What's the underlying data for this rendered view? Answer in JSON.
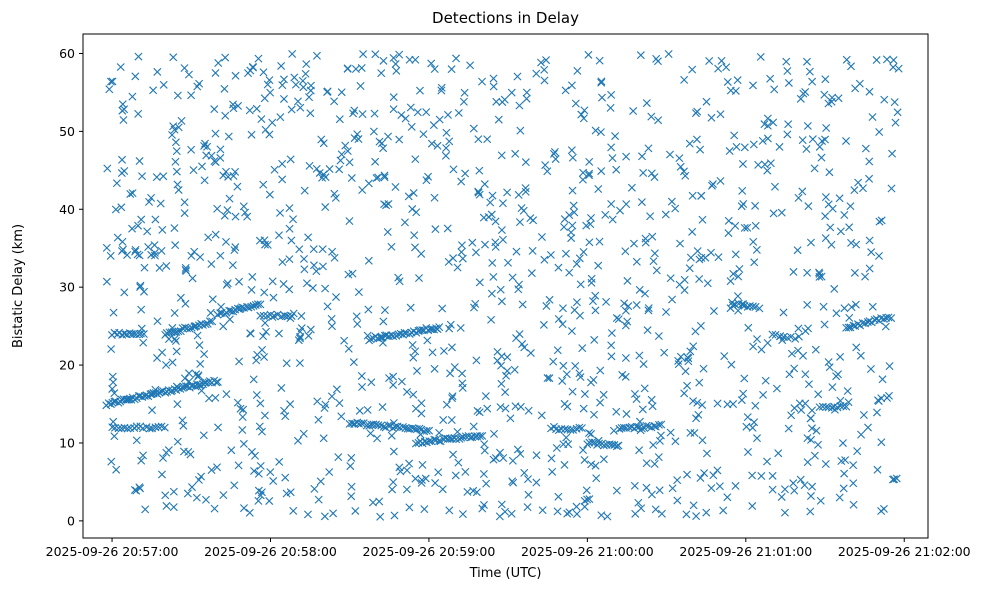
{
  "chart_data": {
    "type": "scatter",
    "title": "Detections in Delay",
    "xlabel": "Time (UTC)",
    "ylabel": "Bistatic Delay (km)",
    "marker": "x",
    "color": "#1f77b4",
    "xlim": [
      "2025-09-26 20:56:49",
      "2025-09-26 21:02:09"
    ],
    "ylim": [
      -2.2,
      62.5
    ],
    "x_ticks": [
      "2025-09-26 20:57:00",
      "2025-09-26 20:58:00",
      "2025-09-26 20:59:00",
      "2025-09-26 21:00:00",
      "2025-09-26 21:01:00",
      "2025-09-26 21:02:00"
    ],
    "y_ticks": [
      0,
      10,
      20,
      30,
      40,
      50,
      60
    ],
    "grid": false,
    "tracks": [
      {
        "t": [
          "2025-09-26 20:56:58",
          "2025-09-26 20:57:40"
        ],
        "delay": [
          15.0,
          18.0
        ],
        "count": 60
      },
      {
        "t": [
          "2025-09-26 20:57:00",
          "2025-09-26 20:57:12"
        ],
        "delay": [
          24.0,
          24.0
        ],
        "count": 14
      },
      {
        "t": [
          "2025-09-26 20:57:20",
          "2025-09-26 20:57:38"
        ],
        "delay": [
          24.0,
          25.6
        ],
        "count": 22
      },
      {
        "t": [
          "2025-09-26 20:57:40",
          "2025-09-26 20:57:56"
        ],
        "delay": [
          26.5,
          27.8
        ],
        "count": 20
      },
      {
        "t": [
          "2025-09-26 20:57:56",
          "2025-09-26 20:58:08"
        ],
        "delay": [
          26.5,
          26.3
        ],
        "count": 10
      },
      {
        "t": [
          "2025-09-26 20:57:00",
          "2025-09-26 20:57:20"
        ],
        "delay": [
          12.0,
          12.0
        ],
        "count": 18
      },
      {
        "t": [
          "2025-09-26 20:58:30",
          "2025-09-26 20:59:00"
        ],
        "delay": [
          12.6,
          11.6
        ],
        "count": 34
      },
      {
        "t": [
          "2025-09-26 20:58:38",
          "2025-09-26 20:58:56"
        ],
        "delay": [
          23.5,
          24.3
        ],
        "count": 22
      },
      {
        "t": [
          "2025-09-26 20:58:56",
          "2025-09-26 20:59:04"
        ],
        "delay": [
          24.5,
          24.8
        ],
        "count": 12
      },
      {
        "t": [
          "2025-09-26 20:58:55",
          "2025-09-26 20:59:20"
        ],
        "delay": [
          10.0,
          11.0
        ],
        "count": 30
      },
      {
        "t": [
          "2025-09-26 20:59:48",
          "2025-09-26 20:59:58"
        ],
        "delay": [
          11.8,
          11.8
        ],
        "count": 10
      },
      {
        "t": [
          "2025-09-26 21:00:00",
          "2025-09-26 21:00:12"
        ],
        "delay": [
          10.0,
          9.6
        ],
        "count": 14
      },
      {
        "t": [
          "2025-09-26 21:00:12",
          "2025-09-26 21:00:28"
        ],
        "delay": [
          11.8,
          12.2
        ],
        "count": 18
      },
      {
        "t": [
          "2025-09-26 21:00:55",
          "2025-09-26 21:01:05"
        ],
        "delay": [
          27.8,
          27.4
        ],
        "count": 10
      },
      {
        "t": [
          "2025-09-26 21:01:10",
          "2025-09-26 21:01:20"
        ],
        "delay": [
          23.8,
          23.5
        ],
        "count": 8
      },
      {
        "t": [
          "2025-09-26 21:01:28",
          "2025-09-26 21:01:38"
        ],
        "delay": [
          14.6,
          14.6
        ],
        "count": 10
      },
      {
        "t": [
          "2025-09-26 21:01:38",
          "2025-09-26 21:01:55"
        ],
        "delay": [
          24.8,
          26.2
        ],
        "count": 20
      }
    ],
    "clutter": {
      "t_range": [
        "2025-09-26 20:56:58",
        "2025-09-26 21:01:58"
      ],
      "delay_range": [
        0.5,
        60.0
      ],
      "count": 1300,
      "seed": 12345
    }
  }
}
